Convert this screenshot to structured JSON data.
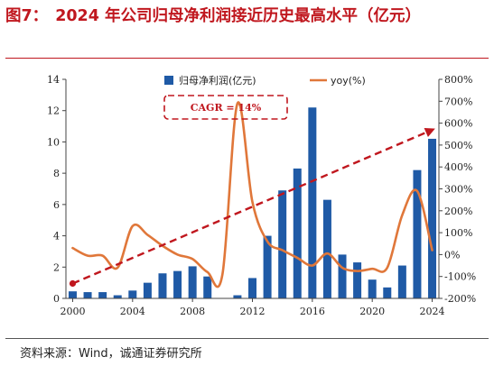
{
  "header": {
    "figure_number": "图7：",
    "title": "2024 年公司归母净利润接近历史最高水平（亿元）"
  },
  "footer": {
    "source": "资料来源：Wind，诚通证券研究所"
  },
  "chart_data": {
    "type": "bar",
    "x": [
      2000,
      2001,
      2002,
      2003,
      2004,
      2005,
      2006,
      2007,
      2008,
      2009,
      2010,
      2011,
      2012,
      2013,
      2014,
      2015,
      2016,
      2017,
      2018,
      2019,
      2020,
      2021,
      2022,
      2023,
      2024
    ],
    "series": [
      {
        "name": "归母净利润(亿元)",
        "type": "bar",
        "axis": "left",
        "color": "#1f5aa6",
        "values": [
          0.45,
          0.4,
          0.4,
          0.2,
          0.5,
          1.0,
          1.6,
          1.75,
          2.05,
          1.4,
          0.0,
          0.2,
          1.3,
          4.0,
          6.9,
          8.3,
          12.2,
          6.3,
          2.8,
          2.3,
          1.2,
          0.7,
          2.1,
          8.2,
          10.2
        ]
      },
      {
        "name": "yoy(%)",
        "type": "line",
        "axis": "right",
        "color": "#e0773a",
        "x": [
          2000,
          2001,
          2002,
          2003,
          2004,
          2005,
          2006,
          2007,
          2008,
          2009,
          2010,
          2011,
          2012,
          2013,
          2014,
          2015,
          2016,
          2017,
          2018,
          2019,
          2020,
          2021,
          2022,
          2023,
          2024
        ],
        "values": [
          30,
          -5,
          -5,
          -60,
          130,
          90,
          40,
          0,
          -20,
          -80,
          -90,
          690,
          240,
          60,
          20,
          -15,
          -50,
          5,
          -60,
          -75,
          -65,
          -60,
          180,
          290,
          20
        ]
      }
    ],
    "xlim": [
      1999.55,
      2024.45
    ],
    "xticks": [
      2000,
      2004,
      2008,
      2012,
      2016,
      2020,
      2024
    ],
    "ylim_left": [
      0,
      14
    ],
    "yticks_left": [
      0,
      2,
      4,
      6,
      8,
      10,
      12,
      14
    ],
    "ylim_right": [
      -200,
      800
    ],
    "yticks_right": [
      -200,
      -100,
      0,
      100,
      200,
      300,
      400,
      500,
      600,
      700,
      800
    ],
    "ytick_right_suffix": "%",
    "grid": false,
    "legend_position": "top",
    "annotations": {
      "cagr_label": "CAGR = 14%",
      "trend_arrow": {
        "color": "#c0171e",
        "from": {
          "x": 2000,
          "y": 0.95
        },
        "to": {
          "x": 2024.2,
          "y": 10.85
        }
      },
      "cagr_box_color": "#c0171e"
    }
  }
}
